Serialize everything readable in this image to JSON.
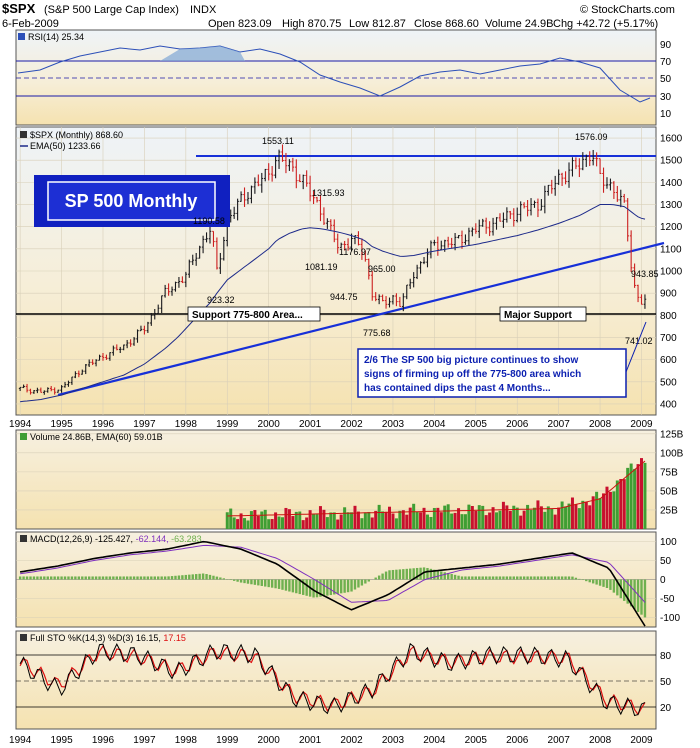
{
  "header": {
    "symbol": "$SPX",
    "name": "(S&P 500 Large Cap Index)",
    "exchange": "INDX",
    "date": "6-Feb-2009",
    "open": "Open 823.09",
    "high": "High 870.75",
    "low": "Low 812.87",
    "close": "Close 868.60",
    "volume": "Volume 24.9B",
    "chg": "Chg +42.72 (+5.17%)",
    "watermark": "© StockCharts.com"
  },
  "panels": {
    "rsi": {
      "label": "RSI(14) 25.34"
    },
    "price": {
      "label": "$SPX (Monthly) 868.60",
      "ema_label": "EMA(50) 1233.66"
    },
    "volume": {
      "label": "Volume 24.86B, EMA(60) 59.01B"
    },
    "macd": {
      "label_a": "MACD(12,26,9) -125.427,",
      "label_b": "-62.144,",
      "label_c": "-63.283"
    },
    "sto": {
      "label_a": "Full STO %K(14,3) %D(3) 16.15,",
      "label_b": "17.15"
    }
  },
  "annotations": {
    "title_box": "SP 500 Monthly",
    "support_left": "Support 775-800 Area...",
    "support_right": "Major Support",
    "note_line1": "2/6  The SP 500 big picture continues to show",
    "note_line2": "signs of firming up off the 775-800 area which",
    "note_line3": "has contained dips the past 4 Months..."
  },
  "colors": {
    "panel_bg": "#f7e7bd",
    "upper_bg": "#eaf0f6",
    "price_up": "#18181c",
    "price_down": "#cc1f1f",
    "ema": "#1d2a8a",
    "trendline": "#1730d8",
    "support": "#000000",
    "rsi": "#2c4fb8",
    "vol_up": "#3f9e33",
    "vol_down": "#c8102e",
    "macd_line": "#000000",
    "macd_signal": "#7f2fbf",
    "macd_hist": "#6fb04f",
    "sto_k": "#000000",
    "sto_d": "#dd1111",
    "note_box": "#0b1fb0",
    "title_box": "#1020c0"
  },
  "chart_data": [
    {
      "type": "line",
      "title": "RSI(14) 25.34",
      "y_ticks": [
        10,
        30,
        50,
        70,
        90
      ],
      "ylim": [
        10,
        90
      ],
      "x": [
        "1994",
        "1995",
        "1996",
        "1997",
        "1998",
        "1999",
        "2000",
        "2001",
        "2002",
        "2003",
        "2004",
        "2005",
        "2006",
        "2007",
        "2008",
        "2009"
      ],
      "series": [
        {
          "name": "RSI(14)",
          "values": [
            55,
            62,
            72,
            74,
            70,
            73,
            70,
            52,
            38,
            45,
            58,
            56,
            60,
            60,
            40,
            25
          ]
        }
      ]
    },
    {
      "type": "line",
      "title": "$SPX (Monthly) 868.60",
      "y_ticks": [
        400,
        500,
        600,
        700,
        800,
        900,
        1000,
        1100,
        1200,
        1300,
        1400,
        1500,
        1600
      ],
      "ylim": [
        350,
        1650
      ],
      "x_ticks": [
        "1994",
        "1995",
        "1996",
        "1997",
        "1998",
        "1999",
        "2000",
        "2001",
        "2002",
        "2003",
        "2004",
        "2005",
        "2006",
        "2007",
        "2008",
        "2009"
      ],
      "x": [
        1994.0,
        1994.5,
        1995.0,
        1995.5,
        1996.0,
        1996.5,
        1997.0,
        1997.5,
        1997.8,
        1998.0,
        1998.3,
        1998.6,
        1998.75,
        1999.0,
        1999.5,
        2000.0,
        2000.2,
        2000.5,
        2000.8,
        2001.0,
        2001.3,
        2001.7,
        2002.0,
        2002.3,
        2002.5,
        2002.75,
        2003.0,
        2003.2,
        2003.5,
        2004.0,
        2004.5,
        2005.0,
        2005.5,
        2006.0,
        2006.5,
        2007.0,
        2007.5,
        2007.8,
        2008.0,
        2008.3,
        2008.6,
        2008.8,
        2008.95,
        2009.1
      ],
      "series": [
        {
          "name": "$SPX",
          "values": [
            470,
            455,
            470,
            560,
            615,
            660,
            740,
            900,
            950,
            980,
            1100,
            1190,
            1000,
            1230,
            1360,
            1440,
            1520,
            1470,
            1420,
            1350,
            1260,
            1100,
            1150,
            1080,
            900,
            850,
            880,
            850,
            990,
            1120,
            1130,
            1190,
            1220,
            1270,
            1300,
            1420,
            1480,
            1540,
            1420,
            1380,
            1280,
            950,
            860,
            868.6
          ]
        },
        {
          "name": "EMA(50)",
          "values": [
            410,
            420,
            440,
            470,
            500,
            530,
            580,
            650,
            700,
            740,
            800,
            860,
            900,
            960,
            1030,
            1100,
            1140,
            1170,
            1190,
            1195,
            1190,
            1175,
            1160,
            1140,
            1110,
            1090,
            1075,
            1065,
            1070,
            1090,
            1105,
            1120,
            1140,
            1160,
            1185,
            1215,
            1250,
            1280,
            1300,
            1300,
            1290,
            1260,
            1240,
            1233.66
          ]
        }
      ],
      "price_labels": [
        "1190.58",
        "923.32",
        "1553.11",
        "1315.93",
        "1081.19",
        "1176.97",
        "944.75",
        "965.00",
        "775.68",
        "1576.09",
        "943.85",
        "741.02"
      ]
    },
    {
      "type": "bar",
      "title": "Volume 24.86B, EMA(60) 59.01B",
      "y_ticks": [
        "25B",
        "50B",
        "75B",
        "100B",
        "125B"
      ],
      "ylim": [
        0,
        130
      ],
      "unit": "B",
      "x_ticks": [
        "1999",
        "2000",
        "2001",
        "2002",
        "2003",
        "2004",
        "2005",
        "2006",
        "2007",
        "2008",
        "2009"
      ]
    },
    {
      "type": "line",
      "title": "MACD(12,26,9)",
      "y_ticks": [
        -100,
        -50,
        0,
        50,
        100
      ],
      "ylim": [
        -125,
        125
      ],
      "series": [
        {
          "name": "MACD",
          "values": [
            20,
            35,
            55,
            70,
            80,
            100,
            80,
            40,
            -30,
            -80,
            -40,
            20,
            30,
            40,
            55,
            70,
            30,
            -125.427
          ]
        },
        {
          "name": "Signal",
          "values": [
            15,
            30,
            50,
            65,
            75,
            90,
            85,
            55,
            0,
            -60,
            -55,
            0,
            25,
            35,
            50,
            65,
            45,
            -62.144
          ]
        }
      ]
    },
    {
      "type": "line",
      "title": "Full STO %K(14,3) %D(3)",
      "y_ticks": [
        20,
        50,
        80
      ],
      "ylim": [
        0,
        100
      ],
      "series": [
        {
          "name": "%K",
          "values": [
            70,
            40,
            85,
            80,
            60,
            85,
            80,
            30,
            20,
            40,
            85,
            70,
            80,
            80,
            75,
            25,
            16.15
          ]
        },
        {
          "name": "%D",
          "values": [
            72,
            45,
            83,
            78,
            62,
            83,
            78,
            33,
            22,
            38,
            83,
            72,
            78,
            78,
            77,
            28,
            17.15
          ]
        }
      ]
    }
  ]
}
